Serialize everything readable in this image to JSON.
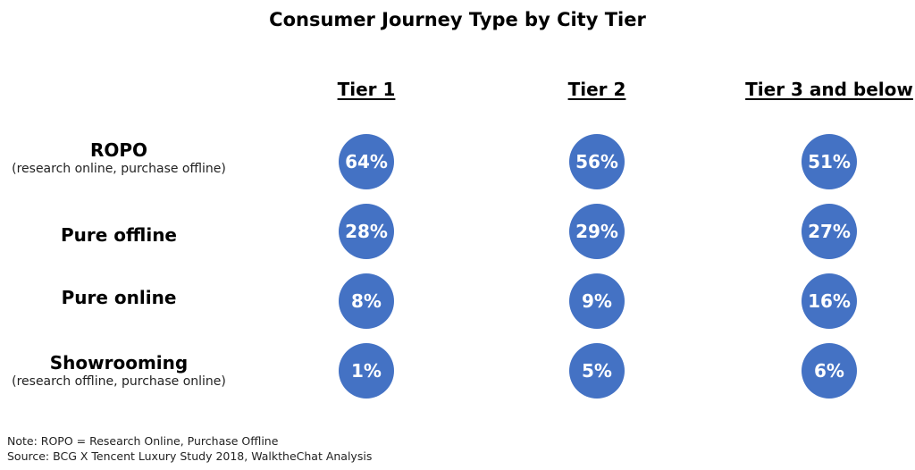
{
  "chart_data": {
    "type": "table",
    "title": "Consumer Journey Type by City Tier",
    "columns": [
      "Tier 1",
      "Tier 2",
      "Tier 3 and below"
    ],
    "rows": [
      {
        "label": "ROPO",
        "sublabel": "(research online, purchase offline)",
        "values": [
          "64%",
          "56%",
          "51%"
        ]
      },
      {
        "label": "Pure offline",
        "sublabel": "",
        "values": [
          "28%",
          "29%",
          "27%"
        ]
      },
      {
        "label": "Pure online",
        "sublabel": "",
        "values": [
          "8%",
          "9%",
          "16%"
        ]
      },
      {
        "label": "Showrooming",
        "sublabel": "(research offline, purchase online)",
        "values": [
          "1%",
          "5%",
          "6%"
        ]
      }
    ],
    "bubble_color": "#4472c4"
  },
  "notes": {
    "note": "Note: ROPO = Research Online, Purchase Offline",
    "source": "Source: BCG X Tencent Luxury Study 2018, WalktheChat Analysis"
  }
}
